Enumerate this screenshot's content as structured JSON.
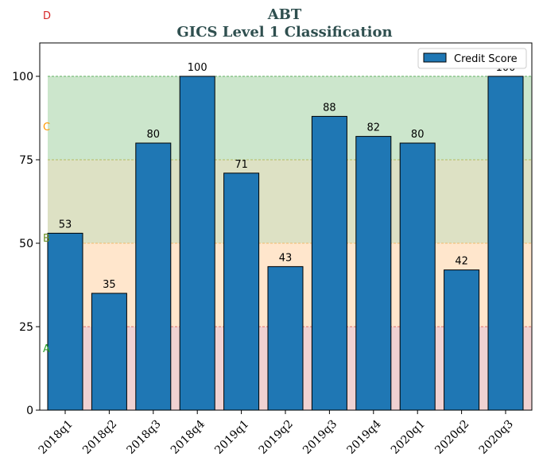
{
  "chart_data": {
    "type": "bar",
    "title": "ABT",
    "subtitle": "GICS Level 1 Classification",
    "categories": [
      "2018q1",
      "2018q2",
      "2018q3",
      "2018q4",
      "2019q1",
      "2019q2",
      "2019q3",
      "2019q4",
      "2020q1",
      "2020q2",
      "2020q3"
    ],
    "series": [
      {
        "name": "Credit Score",
        "values": [
          53,
          35,
          80,
          100,
          71,
          43,
          88,
          82,
          80,
          42,
          100
        ]
      }
    ],
    "ylim": [
      0,
      110
    ],
    "yticks": [
      0,
      25,
      50,
      75,
      100
    ],
    "legend": "top-right",
    "grid": false,
    "colors": {
      "bar": "#1f77b4",
      "bar_edge": "#000000",
      "title": "#2f4f4f",
      "band_A": "#f0d2d2",
      "band_B": "#ffe6cc",
      "band_C": "#dde1c4",
      "band_D": "#cce6cc",
      "line_25": "#d9534f",
      "line_50": "#f0ad4e",
      "line_75": "#a8b040",
      "line_100": "#3a9a3a"
    },
    "bands": [
      {
        "label": "A",
        "from": 0,
        "to": 25,
        "label_color": "#2ca02c"
      },
      {
        "label": "B",
        "from": 25,
        "to": 50,
        "label_color": "#6b8e23"
      },
      {
        "label": "C",
        "from": 50,
        "to": 75,
        "label_color": "#ff9900"
      },
      {
        "label": "D",
        "from": 75,
        "to": 100,
        "label_color": "#d62728"
      }
    ]
  }
}
